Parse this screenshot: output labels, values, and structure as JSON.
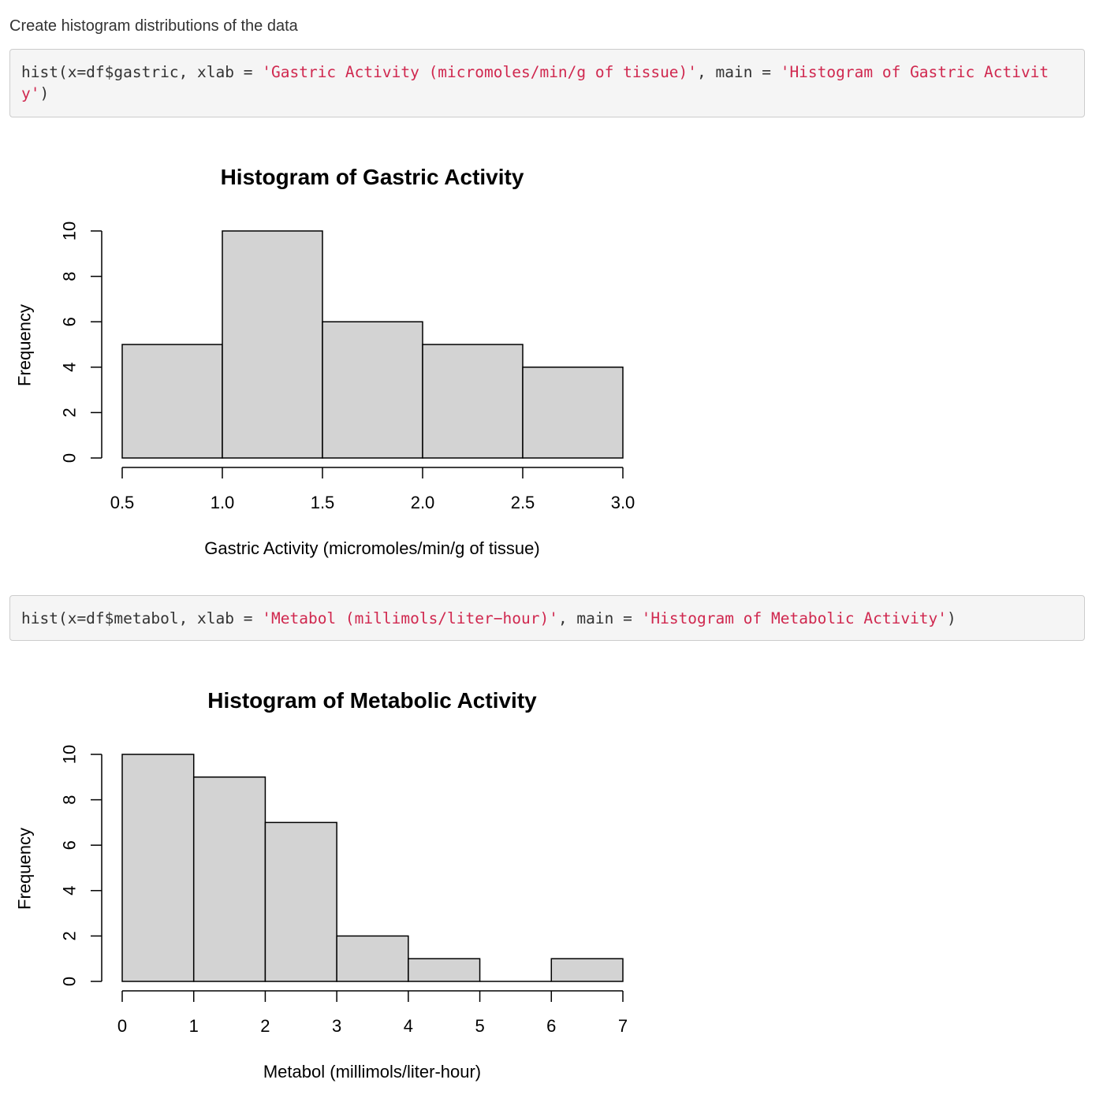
{
  "intro_text": "Create histogram distributions of the data",
  "code_blocks": [
    {
      "segments": [
        {
          "text": "hist(x=df$gastric, xlab = ",
          "type": "plain"
        },
        {
          "text": "'Gastric Activity (micromoles/min/g of tissue)'",
          "type": "string"
        },
        {
          "text": ", main = ",
          "type": "plain"
        },
        {
          "text": "'Histogram of Gastric Activity'",
          "type": "string"
        },
        {
          "text": ")",
          "type": "plain"
        }
      ]
    },
    {
      "segments": [
        {
          "text": "hist(x=df$metabol, xlab = ",
          "type": "plain"
        },
        {
          "text": "'Metabol (millimols/liter−hour)'",
          "type": "string"
        },
        {
          "text": ", main = ",
          "type": "plain"
        },
        {
          "text": "'Histogram of Metabolic Activity'",
          "type": "string"
        },
        {
          "text": ")",
          "type": "plain"
        }
      ]
    }
  ],
  "colors": {
    "bar_fill": "#d3d3d3",
    "bar_stroke": "#000000",
    "code_string": "#d0284f",
    "code_background": "#f5f5f5"
  },
  "chart_data": [
    {
      "type": "bar",
      "title": "Histogram of Gastric Activity",
      "xlabel": "Gastric Activity (micromoles/min/g of tissue)",
      "ylabel": "Frequency",
      "bin_edges": [
        0.5,
        1.0,
        1.5,
        2.0,
        2.5,
        3.0
      ],
      "values": [
        5,
        10,
        6,
        5,
        4
      ],
      "x_ticks": [
        0.5,
        1.0,
        1.5,
        2.0,
        2.5,
        3.0
      ],
      "x_tick_labels": [
        "0.5",
        "1.0",
        "1.5",
        "2.0",
        "2.5",
        "3.0"
      ],
      "y_ticks": [
        0,
        2,
        4,
        6,
        8,
        10
      ],
      "y_tick_labels": [
        "0",
        "2",
        "4",
        "6",
        "8",
        "10"
      ],
      "xlim": [
        0.5,
        3.0
      ],
      "ylim": [
        0,
        10
      ],
      "grid": false
    },
    {
      "type": "bar",
      "title": "Histogram of Metabolic Activity",
      "xlabel": "Metabol (millimols/liter-hour)",
      "ylabel": "Frequency",
      "bin_edges": [
        0,
        1,
        2,
        3,
        4,
        5,
        6,
        7
      ],
      "values": [
        10,
        9,
        7,
        2,
        1,
        0,
        1
      ],
      "x_ticks": [
        0,
        1,
        2,
        3,
        4,
        5,
        6,
        7
      ],
      "x_tick_labels": [
        "0",
        "1",
        "2",
        "3",
        "4",
        "5",
        "6",
        "7"
      ],
      "y_ticks": [
        0,
        2,
        4,
        6,
        8,
        10
      ],
      "y_tick_labels": [
        "0",
        "2",
        "4",
        "6",
        "8",
        "10"
      ],
      "xlim": [
        0,
        7
      ],
      "ylim": [
        0,
        10
      ],
      "grid": false
    }
  ]
}
